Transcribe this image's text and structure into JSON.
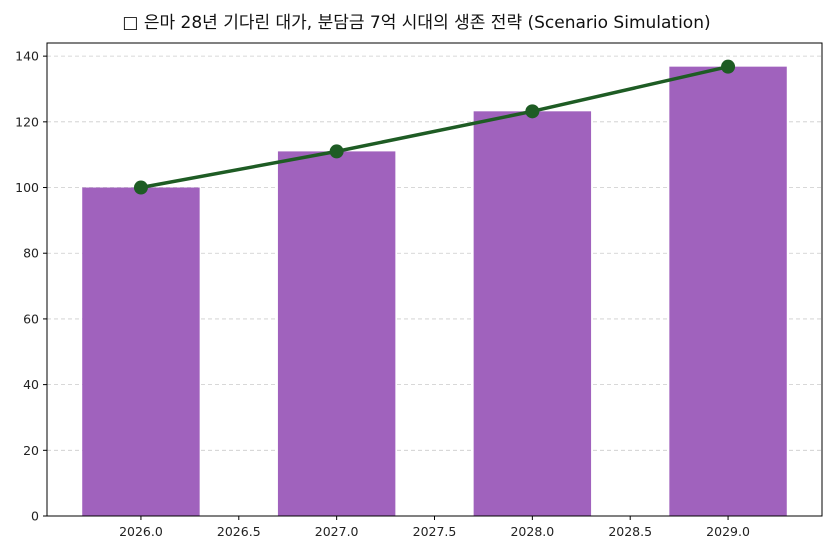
{
  "chart_data": {
    "type": "bar",
    "title": "□ 은마 28년 기다린 대가, 분담금 7억 시대의 생존 전략 (Scenario Simulation)",
    "xlabel": "",
    "ylabel": "",
    "categories": [
      2026,
      2027,
      2028,
      2029
    ],
    "series": [
      {
        "name": "bar",
        "type": "bar",
        "color": "#a062bd",
        "values": [
          100,
          111,
          123.2,
          136.8
        ]
      },
      {
        "name": "line",
        "type": "line",
        "color": "#1e5c24",
        "marker": "circle",
        "values": [
          100,
          111,
          123.2,
          136.8
        ]
      }
    ],
    "xlim": [
      2025.52,
      2029.48
    ],
    "ylim": [
      0,
      144
    ],
    "xticks": [
      "2026.0",
      "2026.5",
      "2027.0",
      "2027.5",
      "2028.0",
      "2028.5",
      "2029.0"
    ],
    "yticks": [
      "0",
      "20",
      "40",
      "60",
      "80",
      "100",
      "120",
      "140"
    ],
    "grid": {
      "y": true,
      "x": false,
      "style": "dashed"
    },
    "legend": null
  }
}
